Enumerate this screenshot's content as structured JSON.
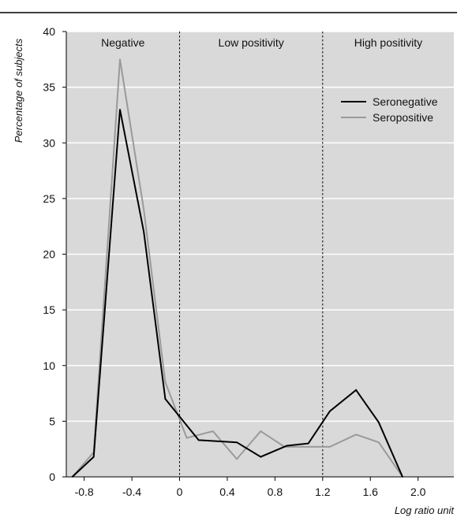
{
  "chart_data": {
    "type": "line",
    "xlabel": "Log ratio unit",
    "ylabel": "Percentage of subjects",
    "xlim": [
      -0.95,
      2.3
    ],
    "ylim": [
      0,
      40
    ],
    "x_ticks": [
      -0.8,
      -0.4,
      0,
      0.4,
      0.8,
      1.2,
      1.6,
      2.0
    ],
    "x_tick_labels": [
      "-0.8",
      "-0.4",
      "0",
      "0.4",
      "0.8",
      "1.2",
      "1.6",
      "2.0"
    ],
    "y_ticks": [
      0,
      5,
      10,
      15,
      20,
      25,
      30,
      35,
      40
    ],
    "y_tick_labels": [
      "0",
      "5",
      "10",
      "15",
      "20",
      "25",
      "30",
      "35",
      "40"
    ],
    "grid": "horizontal",
    "legend_position": "top-right",
    "background": "#d9d9d9",
    "regions": [
      {
        "label": "Negative",
        "from": -0.95,
        "to": 0
      },
      {
        "label": "Low positivity",
        "from": 0,
        "to": 1.2
      },
      {
        "label": "High positivity",
        "from": 1.2,
        "to": 2.3
      }
    ],
    "region_dividers": [
      0,
      1.2
    ],
    "series": [
      {
        "name": "Seronegative",
        "color": "#000000",
        "x": [
          -0.9,
          -0.72,
          -0.5,
          -0.3,
          -0.12,
          0.16,
          0.48,
          0.68,
          0.9,
          1.08,
          1.26,
          1.48,
          1.67,
          1.87
        ],
        "y": [
          0,
          1.8,
          33,
          22,
          7,
          3.3,
          3.1,
          1.8,
          2.8,
          3.0,
          5.9,
          7.8,
          4.9,
          0
        ]
      },
      {
        "name": "Seropositive",
        "color": "#9a9a9a",
        "x": [
          -0.9,
          -0.72,
          -0.5,
          -0.3,
          -0.12,
          0.06,
          0.28,
          0.48,
          0.68,
          0.88,
          1.08,
          1.26,
          1.48,
          1.67,
          1.87
        ],
        "y": [
          0,
          2.2,
          37.5,
          24,
          8.5,
          3.5,
          4.1,
          1.6,
          4.1,
          2.7,
          2.7,
          2.7,
          3.8,
          3.1,
          0
        ]
      }
    ]
  }
}
